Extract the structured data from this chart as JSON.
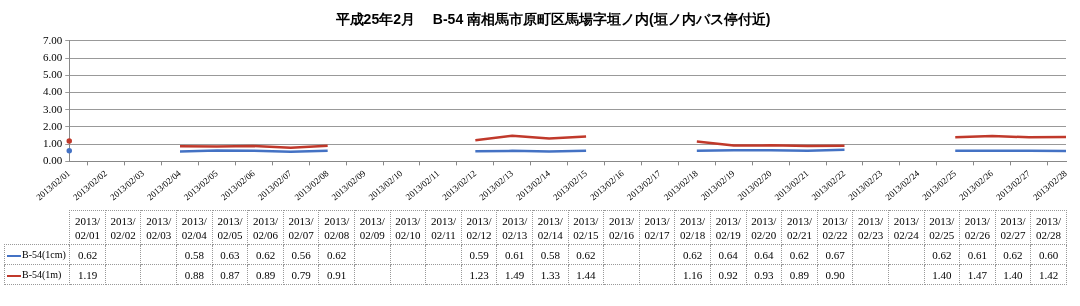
{
  "chart_data": {
    "type": "line",
    "title": "平成25年2月　 B-54 南相馬市原町区馬場字垣ノ内(垣ノ内バス停付近)",
    "categories": [
      "2013/02/01",
      "2013/02/02",
      "2013/02/03",
      "2013/02/04",
      "2013/02/05",
      "2013/02/06",
      "2013/02/07",
      "2013/02/08",
      "2013/02/09",
      "2013/02/10",
      "2013/02/11",
      "2013/02/12",
      "2013/02/13",
      "2013/02/14",
      "2013/02/15",
      "2013/02/16",
      "2013/02/17",
      "2013/02/18",
      "2013/02/19",
      "2013/02/20",
      "2013/02/21",
      "2013/02/22",
      "2013/02/23",
      "2013/02/24",
      "2013/02/25",
      "2013/02/26",
      "2013/02/27",
      "2013/02/28"
    ],
    "series": [
      {
        "name": "B-54(1cm)",
        "color": "#4472c4",
        "values": [
          0.62,
          null,
          null,
          0.58,
          0.63,
          0.62,
          0.56,
          0.62,
          null,
          null,
          null,
          0.59,
          0.61,
          0.58,
          0.62,
          null,
          null,
          0.62,
          0.64,
          0.64,
          0.62,
          0.67,
          null,
          null,
          0.62,
          0.61,
          0.62,
          0.6
        ],
        "value_labels": [
          "0.62",
          null,
          null,
          "0.58",
          "0.63",
          "0.62",
          "0.56",
          "0.62",
          null,
          null,
          null,
          "0.59",
          "0.61",
          "0.58",
          "0.62",
          null,
          null,
          "0.62",
          "0.64",
          "0.64",
          "0.62",
          "0.67",
          null,
          null,
          "0.62",
          "0.61",
          "0.62",
          "0.60"
        ]
      },
      {
        "name": "B-54(1m)",
        "color": "#c0392b",
        "values": [
          1.19,
          null,
          null,
          0.88,
          0.87,
          0.89,
          0.79,
          0.91,
          null,
          null,
          null,
          1.23,
          1.49,
          1.33,
          1.44,
          null,
          null,
          1.16,
          0.92,
          0.93,
          0.89,
          0.9,
          null,
          null,
          1.4,
          1.47,
          1.4,
          1.42
        ],
        "value_labels": [
          "1.19",
          null,
          null,
          "0.88",
          "0.87",
          "0.89",
          "0.79",
          "0.91",
          null,
          null,
          null,
          "1.23",
          "1.49",
          "1.33",
          "1.44",
          null,
          null,
          "1.16",
          "0.92",
          "0.93",
          "0.89",
          "0.90",
          null,
          null,
          "1.40",
          "1.47",
          "1.40",
          "1.42"
        ]
      }
    ],
    "ylim": [
      0,
      7
    ],
    "yticks": [
      {
        "value": 0,
        "label": "0.00"
      },
      {
        "value": 1,
        "label": "1.00"
      },
      {
        "value": 2,
        "label": "2.00"
      },
      {
        "value": 3,
        "label": "3.00"
      },
      {
        "value": 4,
        "label": "4.00"
      },
      {
        "value": 5,
        "label": "5.00"
      },
      {
        "value": 6,
        "label": "6.00"
      },
      {
        "value": 7,
        "label": "7.00"
      }
    ],
    "grid": "y",
    "legend": "bottom",
    "marker": "none",
    "line_style": "solid"
  }
}
